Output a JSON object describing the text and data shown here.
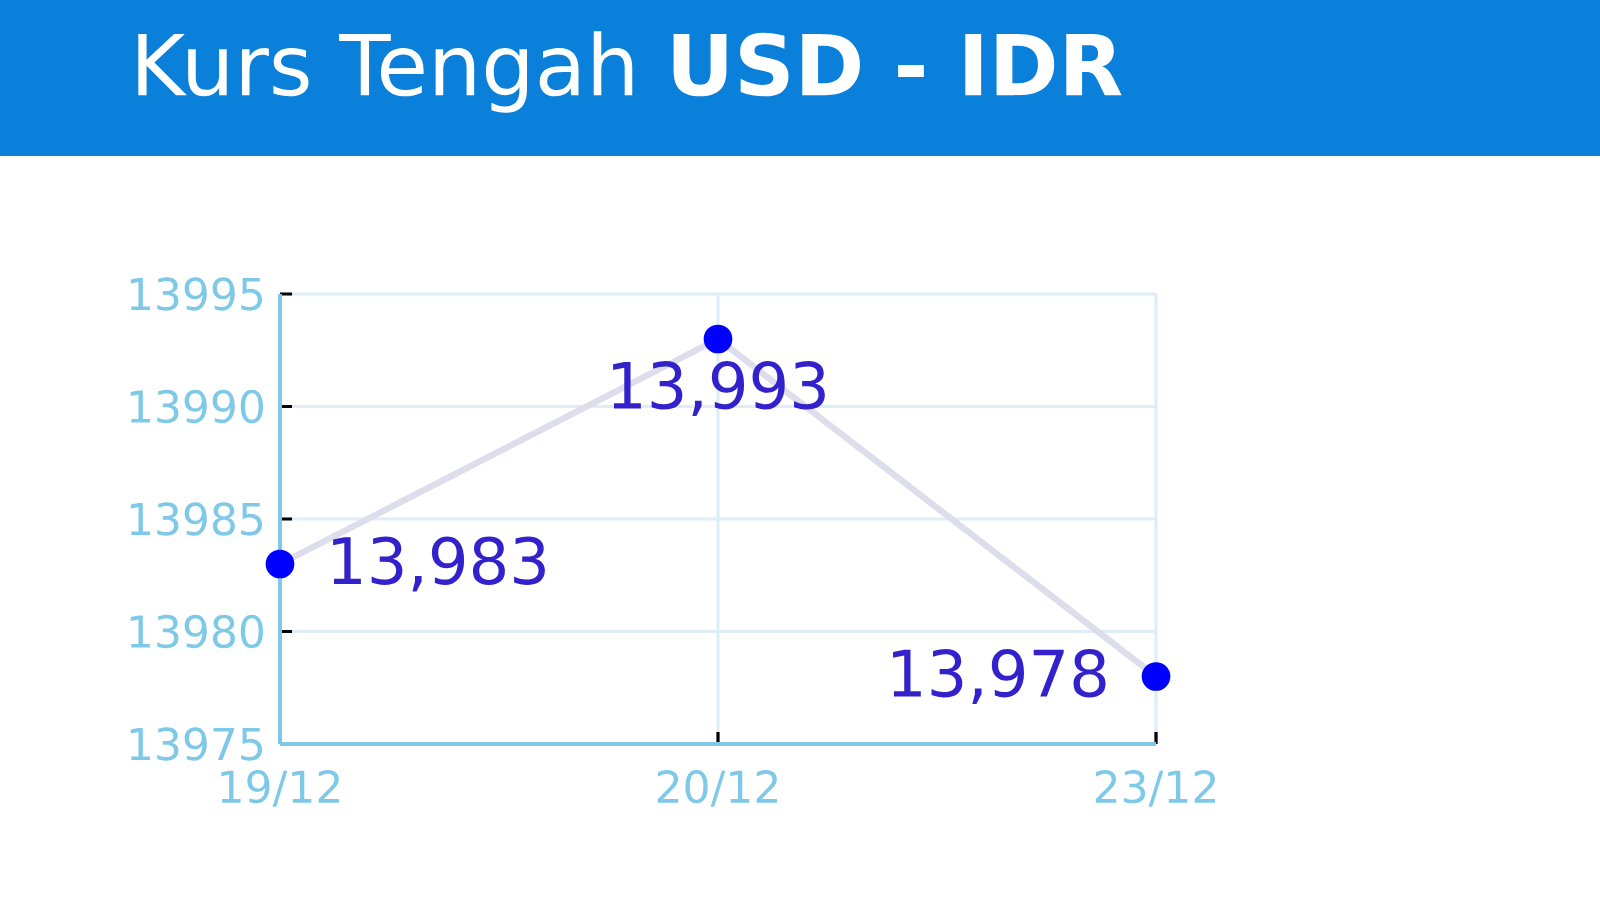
{
  "chart_data": {
    "type": "line",
    "title": "Kurs Tengah **USD - IDR**",
    "categories": [
      "19/12",
      "20/12",
      "23/12"
    ],
    "series": [
      {
        "color": "#0000ff",
        "values": [
          13983,
          13993,
          13978
        ],
        "value_labels": [
          "13,983",
          "13,993",
          "13,978"
        ]
      }
    ],
    "ylim": [
      13975,
      13995
    ],
    "yticks": [
      13975,
      13980,
      13985,
      13990,
      13995
    ],
    "grid": true,
    "marker": "circle",
    "line_style": "solid"
  }
}
